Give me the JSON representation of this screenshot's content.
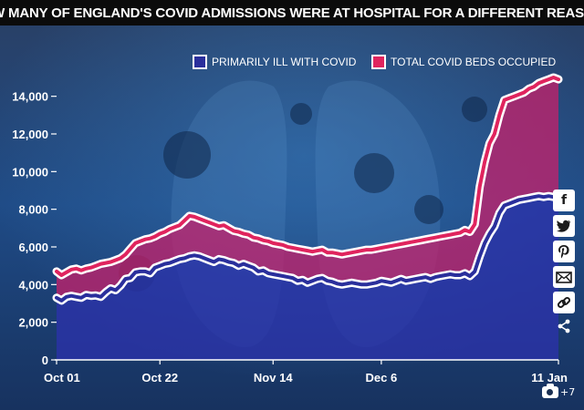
{
  "chart_data": {
    "type": "line",
    "title": "HOW MANY OF ENGLAND'S COVID ADMISSIONS WERE AT HOSPITAL FOR A DIFFERENT REASON?",
    "xlabel": "",
    "ylabel": "",
    "ylim": [
      0,
      15000
    ],
    "yticks": [
      0,
      2000,
      4000,
      6000,
      8000,
      10000,
      12000,
      14000
    ],
    "ytick_labels": [
      "0",
      "2,000",
      "4,000",
      "6,000",
      "8,000",
      "10,000",
      "12,000",
      "14,000"
    ],
    "xticks": [
      {
        "day": 0,
        "label": "Oct 01"
      },
      {
        "day": 21,
        "label": "Oct 22"
      },
      {
        "day": 44,
        "label": "Nov 14"
      },
      {
        "day": 66,
        "label": "Dec 6"
      },
      {
        "day": 102,
        "label": "11 Jan"
      }
    ],
    "legend_position": "top-right",
    "grid": false,
    "series": [
      {
        "name": "PRIMARILY ILL WITH COVID",
        "color": "#2a2f9c",
        "values": [
          3300,
          3150,
          3350,
          3400,
          3350,
          3300,
          3450,
          3400,
          3420,
          3350,
          3600,
          3800,
          3700,
          3950,
          4300,
          4350,
          4650,
          4700,
          4700,
          4600,
          4900,
          5000,
          5100,
          5150,
          5250,
          5350,
          5400,
          5500,
          5550,
          5500,
          5400,
          5300,
          5200,
          5350,
          5300,
          5200,
          5150,
          5000,
          5100,
          5000,
          4900,
          4700,
          4750,
          4600,
          4550,
          4500,
          4450,
          4400,
          4350,
          4200,
          4250,
          4100,
          4200,
          4300,
          4350,
          4200,
          4150,
          4050,
          4000,
          4050,
          4100,
          4050,
          4000,
          4000,
          4050,
          4100,
          4200,
          4150,
          4100,
          4200,
          4300,
          4200,
          4250,
          4300,
          4350,
          4400,
          4300,
          4400,
          4450,
          4500,
          4550,
          4500,
          4500,
          4600,
          4450,
          4700,
          5500,
          6200,
          6700,
          7100,
          7800,
          8200,
          8300,
          8400,
          8500,
          8550,
          8600,
          8650,
          8700,
          8650,
          8700,
          8650,
          8600
        ]
      },
      {
        "name": "TOTAL COVID BEDS OCCUPIED",
        "color": "#e0245e",
        "values": [
          4700,
          4500,
          4650,
          4800,
          4850,
          4750,
          4850,
          4900,
          5000,
          5100,
          5150,
          5200,
          5300,
          5400,
          5600,
          5900,
          6200,
          6300,
          6400,
          6450,
          6550,
          6700,
          6800,
          6950,
          7050,
          7150,
          7400,
          7650,
          7600,
          7500,
          7400,
          7300,
          7200,
          7100,
          7150,
          7000,
          6850,
          6800,
          6700,
          6650,
          6500,
          6450,
          6350,
          6300,
          6200,
          6150,
          6100,
          6000,
          5950,
          5900,
          5850,
          5800,
          5750,
          5800,
          5850,
          5700,
          5700,
          5650,
          5600,
          5650,
          5700,
          5750,
          5800,
          5850,
          5850,
          5900,
          5950,
          6000,
          6050,
          6100,
          6150,
          6200,
          6250,
          6300,
          6350,
          6400,
          6450,
          6500,
          6550,
          6600,
          6650,
          6700,
          6750,
          6900,
          6800,
          7200,
          9200,
          10500,
          11500,
          12000,
          13000,
          13800,
          13900,
          14000,
          14100,
          14200,
          14400,
          14500,
          14700,
          14800,
          14900,
          15000,
          14900
        ]
      }
    ]
  },
  "share_icons": [
    "facebook-icon",
    "twitter-icon",
    "pinterest-icon",
    "email-icon",
    "link-icon",
    "share-icon"
  ],
  "photo_count": "+7"
}
